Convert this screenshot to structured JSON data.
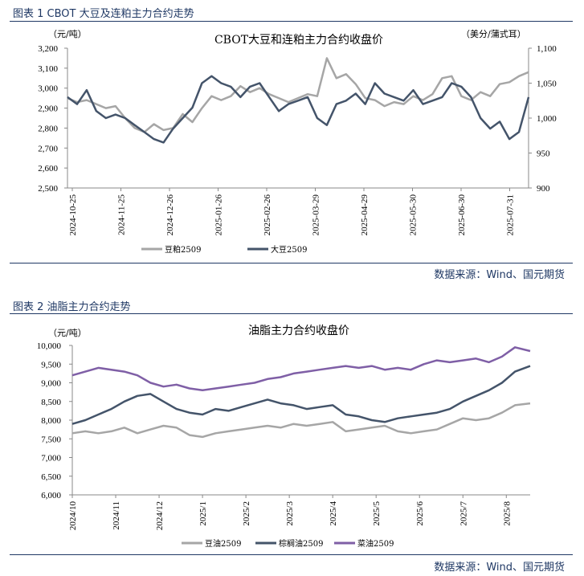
{
  "figure1": {
    "title": "图表 1 CBOT 大豆及连粕主力合约走势",
    "source": "数据来源：Wind、国元期货"
  },
  "figure2": {
    "title": "图表 2 油脂主力合约走势",
    "source": "数据来源：Wind、国元期货"
  },
  "colors": {
    "soymeal": "#a6a6a6",
    "soybean": "#44546a",
    "palm": "#44546a",
    "rapeseed": "#7f5fa6",
    "soyoil": "#a6a6a6"
  },
  "chart_data": [
    {
      "type": "line",
      "title": "CBOT大豆和连粕主力合约收盘价",
      "ylabel_left": "（元/吨）",
      "ylabel_right": "（美分/蒲式耳）",
      "x_tick_labels": [
        "2024-10-25",
        "2024-11-25",
        "2024-12-26",
        "2025-01-26",
        "2025-02-26",
        "2025-03-29",
        "2025-04-29",
        "2025-05-30",
        "2025-06-30",
        "2025-07-31"
      ],
      "ylim_left": [
        2500,
        3200
      ],
      "yticks_left": [
        "2,500",
        "2,600",
        "2,700",
        "2,800",
        "2,900",
        "3,000",
        "3,100",
        "3,200"
      ],
      "ylim_right": [
        900,
        1100
      ],
      "yticks_right": [
        "900",
        "950",
        "1,000",
        "1,050",
        "1,100"
      ],
      "x_range": [
        0,
        96
      ],
      "series": [
        {
          "name": "豆粕2509",
          "axis": "left",
          "color": "#a6a6a6",
          "x": [
            0,
            2,
            4,
            6,
            8,
            10,
            12,
            14,
            16,
            18,
            20,
            22,
            24,
            26,
            28,
            30,
            32,
            34,
            36,
            38,
            40,
            42,
            44,
            46,
            48,
            50,
            52,
            54,
            56,
            58,
            60,
            62,
            64,
            66,
            68,
            70,
            72,
            74,
            76,
            78,
            80,
            82,
            84,
            86,
            88,
            90,
            92,
            94,
            96
          ],
          "values": [
            2950,
            2930,
            2940,
            2920,
            2900,
            2910,
            2850,
            2800,
            2780,
            2820,
            2790,
            2800,
            2870,
            2830,
            2900,
            2960,
            2940,
            2960,
            3010,
            2980,
            3000,
            2970,
            2950,
            2930,
            2950,
            2970,
            2960,
            3150,
            3050,
            3070,
            3020,
            2950,
            2940,
            2910,
            2930,
            2920,
            2960,
            2940,
            2970,
            3050,
            3060,
            2960,
            2940,
            2980,
            2960,
            3020,
            3030,
            3060,
            3080
          ]
        },
        {
          "name": "大豆2509",
          "axis": "right",
          "color": "#44546a",
          "x": [
            0,
            2,
            4,
            6,
            8,
            10,
            12,
            14,
            16,
            18,
            20,
            22,
            24,
            26,
            28,
            30,
            32,
            34,
            36,
            38,
            40,
            42,
            44,
            46,
            48,
            50,
            52,
            54,
            56,
            58,
            60,
            62,
            64,
            66,
            68,
            70,
            72,
            74,
            76,
            78,
            80,
            82,
            84,
            86,
            88,
            90,
            92,
            94,
            96
          ],
          "values": [
            1030,
            1020,
            1040,
            1010,
            1000,
            1005,
            1000,
            990,
            980,
            970,
            965,
            985,
            1000,
            1015,
            1050,
            1060,
            1050,
            1045,
            1030,
            1045,
            1050,
            1030,
            1010,
            1020,
            1025,
            1030,
            1000,
            990,
            1020,
            1025,
            1035,
            1020,
            1050,
            1035,
            1030,
            1025,
            1040,
            1020,
            1025,
            1030,
            1050,
            1045,
            1030,
            1000,
            985,
            995,
            970,
            980,
            1030
          ]
        }
      ]
    },
    {
      "type": "line",
      "title": "油脂主力合约收盘价",
      "ylabel": "（元/吨）",
      "x_tick_labels": [
        "2024/10",
        "2024/11",
        "2024/12",
        "2025/1",
        "2025/2",
        "2025/3",
        "2025/4",
        "2025/5",
        "2025/6",
        "2025/7",
        "2025/8"
      ],
      "ylim": [
        6000,
        10000
      ],
      "yticks": [
        "6,000",
        "6,500",
        "7,000",
        "7,500",
        "8,000",
        "8,500",
        "9,000",
        "9,500",
        "10,000"
      ],
      "x_range": [
        0,
        10.55
      ],
      "series": [
        {
          "name": "豆油2509",
          "color": "#a6a6a6",
          "x": [
            0,
            0.3,
            0.6,
            0.9,
            1.2,
            1.5,
            1.8,
            2.1,
            2.4,
            2.7,
            3.0,
            3.3,
            3.6,
            3.9,
            4.2,
            4.5,
            4.8,
            5.1,
            5.4,
            5.7,
            6.0,
            6.3,
            6.6,
            6.9,
            7.2,
            7.5,
            7.8,
            8.1,
            8.4,
            8.7,
            9.0,
            9.3,
            9.6,
            9.9,
            10.2,
            10.55
          ],
          "values": [
            7650,
            7700,
            7650,
            7700,
            7800,
            7650,
            7750,
            7850,
            7800,
            7600,
            7550,
            7650,
            7700,
            7750,
            7800,
            7850,
            7800,
            7900,
            7850,
            7900,
            7950,
            7700,
            7750,
            7800,
            7850,
            7700,
            7650,
            7700,
            7750,
            7900,
            8050,
            8000,
            8050,
            8200,
            8400,
            8450
          ]
        },
        {
          "name": "棕榈油2509",
          "color": "#44546a",
          "x": [
            0,
            0.3,
            0.6,
            0.9,
            1.2,
            1.5,
            1.8,
            2.1,
            2.4,
            2.7,
            3.0,
            3.3,
            3.6,
            3.9,
            4.2,
            4.5,
            4.8,
            5.1,
            5.4,
            5.7,
            6.0,
            6.3,
            6.6,
            6.9,
            7.2,
            7.5,
            7.8,
            8.1,
            8.4,
            8.7,
            9.0,
            9.3,
            9.6,
            9.9,
            10.2,
            10.55
          ],
          "values": [
            7900,
            8000,
            8150,
            8300,
            8500,
            8650,
            8700,
            8500,
            8300,
            8200,
            8150,
            8300,
            8250,
            8350,
            8450,
            8550,
            8450,
            8400,
            8300,
            8350,
            8400,
            8150,
            8100,
            8000,
            7950,
            8050,
            8100,
            8150,
            8200,
            8300,
            8500,
            8650,
            8800,
            9000,
            9300,
            9450
          ]
        },
        {
          "name": "菜油2509",
          "color": "#7f5fa6",
          "x": [
            0,
            0.3,
            0.6,
            0.9,
            1.2,
            1.5,
            1.8,
            2.1,
            2.4,
            2.7,
            3.0,
            3.3,
            3.6,
            3.9,
            4.2,
            4.5,
            4.8,
            5.1,
            5.4,
            5.7,
            6.0,
            6.3,
            6.6,
            6.9,
            7.2,
            7.5,
            7.8,
            8.1,
            8.4,
            8.7,
            9.0,
            9.3,
            9.6,
            9.9,
            10.2,
            10.55
          ],
          "values": [
            9200,
            9300,
            9400,
            9350,
            9300,
            9200,
            9000,
            8900,
            8950,
            8850,
            8800,
            8850,
            8900,
            8950,
            9000,
            9100,
            9150,
            9250,
            9300,
            9350,
            9400,
            9450,
            9400,
            9450,
            9350,
            9400,
            9350,
            9500,
            9600,
            9550,
            9600,
            9650,
            9550,
            9700,
            9950,
            9850
          ]
        }
      ]
    }
  ]
}
